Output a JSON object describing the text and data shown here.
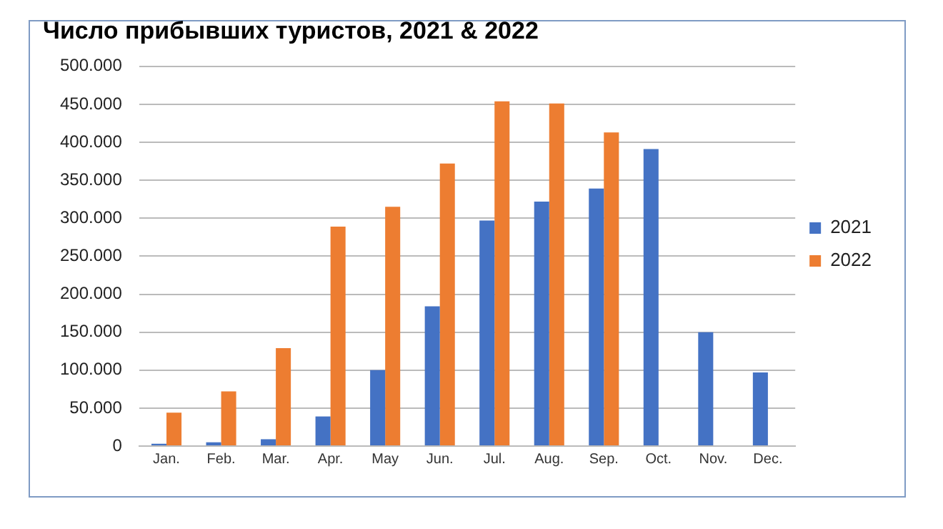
{
  "chart_data": {
    "type": "bar",
    "title": "Число прибывших туристов, 2021 & 2022",
    "categories": [
      "Jan.",
      "Feb.",
      "Mar.",
      "Apr.",
      "May",
      "Jun.",
      "Jul.",
      "Aug.",
      "Sep.",
      "Oct.",
      "Nov.",
      "Dec."
    ],
    "series": [
      {
        "name": "2021",
        "color": "#4472c4",
        "values": [
          3000,
          5000,
          9000,
          39000,
          100000,
          184000,
          297000,
          322000,
          339000,
          391000,
          150000,
          97000
        ]
      },
      {
        "name": "2022",
        "color": "#ed7d31",
        "values": [
          44000,
          72000,
          129000,
          289000,
          315000,
          372000,
          454000,
          451000,
          413000,
          null,
          null,
          null
        ]
      }
    ],
    "ylim": [
      0,
      500000
    ],
    "yticks": [
      0,
      {
        "value": 50000,
        "label": "50.000"
      },
      {
        "value": 100000,
        "label": "100.000"
      },
      {
        "value": 150000,
        "label": "150.000"
      },
      {
        "value": 200000,
        "label": "200.000"
      },
      {
        "value": 250000,
        "label": "250.000"
      },
      {
        "value": 300000,
        "label": "300.000"
      },
      {
        "value": 350000,
        "label": "350.000"
      },
      {
        "value": 400000,
        "label": "400.000"
      },
      {
        "value": 450000,
        "label": "450.000"
      },
      {
        "value": 500000,
        "label": "500.000"
      }
    ],
    "grid": "y",
    "legend": "right"
  }
}
